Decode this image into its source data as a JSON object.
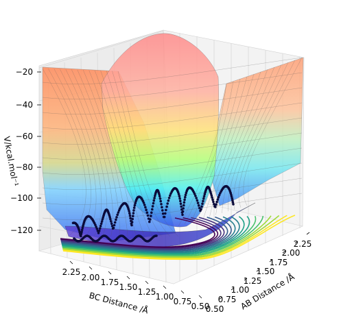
{
  "chart_data": {
    "type": "surface3d",
    "title": "",
    "xlabel": "AB Distance /Å",
    "ylabel": "BC Distance /Å",
    "zlabel": "V/kcal.mol⁻¹",
    "x_ticks": [
      "0.50",
      "0.75",
      "1.00",
      "1.25",
      "1.50",
      "1.75",
      "2.00",
      "2.25"
    ],
    "y_ticks": [
      "2.25",
      "2.00",
      "1.75",
      "1.50",
      "1.25",
      "1.00",
      "0.75",
      "0.50"
    ],
    "z_ticks": [
      "−20",
      "−40",
      "−60",
      "−80",
      "−100",
      "−120"
    ],
    "x_range": [
      0.5,
      2.3
    ],
    "y_range": [
      0.5,
      2.3
    ],
    "z_range": [
      -135,
      -18
    ],
    "colormap": "jet (surface, translucent) / viridis (floor contours)",
    "grid": true,
    "surface_samples": [
      {
        "x": 0.5,
        "y": 0.5,
        "z": -18
      },
      {
        "x": 2.3,
        "y": 2.3,
        "z": -20
      },
      {
        "x": 0.75,
        "y": 2.2,
        "z": -128
      },
      {
        "x": 2.2,
        "y": 0.75,
        "z": -128
      },
      {
        "x": 1.1,
        "y": 1.1,
        "z": -100
      }
    ],
    "trajectory": {
      "description": "oscillating reactive trajectory from the BC valley to the AB valley",
      "x_start": 2.25,
      "y_start": 0.95,
      "x_end": 0.95,
      "y_end": 2.2
    }
  }
}
